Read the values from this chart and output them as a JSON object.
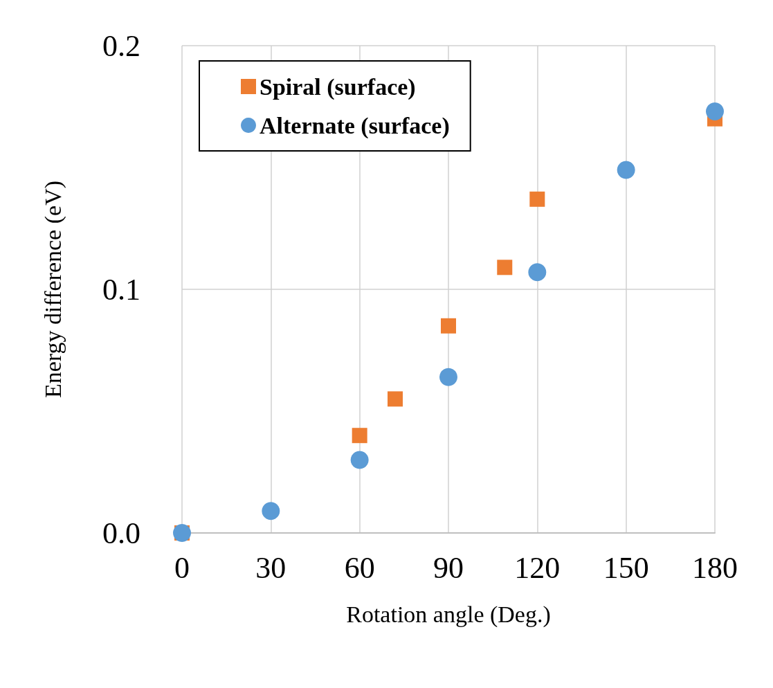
{
  "chart_data": {
    "type": "scatter",
    "xlabel": "Rotation angle (Deg.)",
    "ylabel": "Energy difference (eV)",
    "xlim": [
      0,
      180
    ],
    "xticks": [
      0,
      30,
      60,
      90,
      120,
      150,
      180
    ],
    "ylim": [
      0,
      0.2
    ],
    "yticks": [
      {
        "value": 0,
        "label": "0.0"
      },
      {
        "value": 0.1,
        "label": "0.1"
      },
      {
        "value": 0.2,
        "label": "0.2"
      }
    ],
    "grid": true,
    "legend": "top left",
    "series": [
      {
        "name": "Spiral (surface)",
        "color": "#ed7d31",
        "marker": "square",
        "x": [
          0,
          60,
          72,
          90,
          109,
          120,
          180
        ],
        "values": [
          0,
          0.04,
          0.055,
          0.085,
          0.109,
          0.137,
          0.17
        ]
      },
      {
        "name": "Alternate (surface)",
        "color": "#5b9bd5",
        "marker": "circle",
        "x": [
          0,
          30,
          60,
          90,
          120,
          150,
          180
        ],
        "values": [
          0,
          0.009,
          0.03,
          0.064,
          0.107,
          0.149,
          0.173
        ]
      }
    ]
  }
}
